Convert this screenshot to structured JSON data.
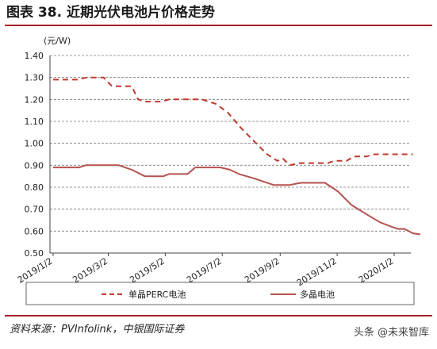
{
  "figure": {
    "title": "图表 38. 近期光伏电池片价格走势",
    "source": "资料来源：PVInfolink，中银国际证券",
    "watermark": "头条 @未来智库"
  },
  "colors": {
    "accent": "#a31f24",
    "series_mono": "#c0392b",
    "series_multi": "#b5524f",
    "grid": "#777777"
  },
  "chart_data": {
    "type": "line",
    "title": "",
    "xlabel": "",
    "ylabel": "(元/W)",
    "ylim": [
      0.5,
      1.4
    ],
    "yticks": [
      "1.40",
      "1.30",
      "1.20",
      "1.10",
      "1.00",
      "0.90",
      "0.80",
      "0.70",
      "0.60",
      "0.50"
    ],
    "grid": true,
    "legend": "bottom",
    "xticks": [
      "2019/1/2",
      "2019/3/2",
      "2019/5/2",
      "2019/7/2",
      "2019/9/2",
      "2019/11/2",
      "2020/1/2"
    ],
    "series": [
      {
        "name": "单晶PERC电池",
        "style": "dashed",
        "points": [
          [
            "2019/1/2",
            1.29
          ],
          [
            "2019/1/28",
            1.29
          ],
          [
            "2019/2/7",
            1.3
          ],
          [
            "2019/2/25",
            1.3
          ],
          [
            "2019/3/6",
            1.26
          ],
          [
            "2019/3/27",
            1.26
          ],
          [
            "2019/4/3",
            1.2
          ],
          [
            "2019/4/10",
            1.19
          ],
          [
            "2019/4/28",
            1.19
          ],
          [
            "2019/5/6",
            1.2
          ],
          [
            "2019/6/10",
            1.2
          ],
          [
            "2019/6/25",
            1.18
          ],
          [
            "2019/7/8",
            1.14
          ],
          [
            "2019/7/22",
            1.07
          ],
          [
            "2019/8/5",
            1.01
          ],
          [
            "2019/8/19",
            0.95
          ],
          [
            "2019/8/30",
            0.92
          ],
          [
            "2019/9/5",
            0.93
          ],
          [
            "2019/9/12",
            0.9
          ],
          [
            "2019/9/24",
            0.91
          ],
          [
            "2019/10/23",
            0.91
          ],
          [
            "2019/10/30",
            0.92
          ],
          [
            "2019/11/12",
            0.92
          ],
          [
            "2019/11/20",
            0.94
          ],
          [
            "2019/12/3",
            0.94
          ],
          [
            "2019/12/12",
            0.95
          ],
          [
            "2020/1/22",
            0.95
          ]
        ]
      },
      {
        "name": "多晶电池",
        "style": "solid",
        "points": [
          [
            "2019/1/2",
            0.89
          ],
          [
            "2019/1/30",
            0.89
          ],
          [
            "2019/2/6",
            0.9
          ],
          [
            "2019/3/13",
            0.9
          ],
          [
            "2019/3/27",
            0.88
          ],
          [
            "2019/4/10",
            0.85
          ],
          [
            "2019/4/30",
            0.85
          ],
          [
            "2019/5/6",
            0.86
          ],
          [
            "2019/5/26",
            0.86
          ],
          [
            "2019/6/3",
            0.89
          ],
          [
            "2019/6/30",
            0.89
          ],
          [
            "2019/7/10",
            0.88
          ],
          [
            "2019/7/20",
            0.86
          ],
          [
            "2019/8/5",
            0.84
          ],
          [
            "2019/8/26",
            0.81
          ],
          [
            "2019/9/12",
            0.81
          ],
          [
            "2019/9/24",
            0.82
          ],
          [
            "2019/10/20",
            0.82
          ],
          [
            "2019/11/3",
            0.78
          ],
          [
            "2019/11/17",
            0.72
          ],
          [
            "2019/12/2",
            0.68
          ],
          [
            "2019/12/18",
            0.64
          ],
          [
            "2019/12/30",
            0.62
          ],
          [
            "2020/1/6",
            0.61
          ],
          [
            "2020/1/13",
            0.61
          ],
          [
            "2020/1/22",
            0.59
          ],
          [
            "2020/1/30",
            0.585
          ]
        ]
      }
    ]
  }
}
